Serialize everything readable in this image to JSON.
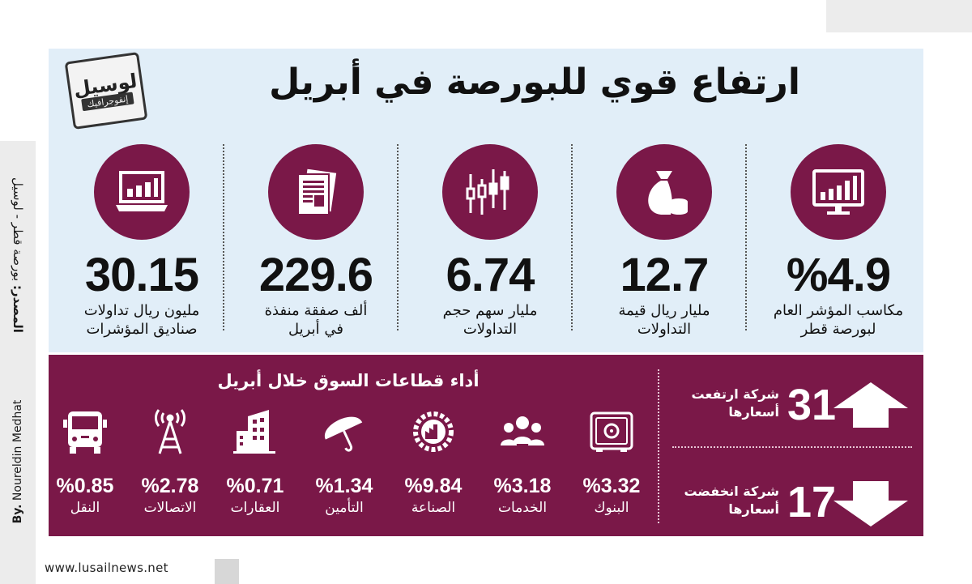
{
  "title": "ارتفاع قوي للبورصة في أبريل",
  "logo": {
    "line1": "لوسيل",
    "line2": "إنفوجرافيك"
  },
  "source": {
    "label": "المصدر:",
    "value": "بورصة قطر - لوسيل"
  },
  "author": {
    "prefix": "By.",
    "name": "Noureldin Medhat"
  },
  "website": "www.lusailnews.net",
  "stats": [
    {
      "icon": "monitor-chart-icon",
      "value": "%4.9",
      "label": "مكاسب المؤشر العام\nلبورصة قطر"
    },
    {
      "icon": "money-bag-icon",
      "value": "12.7",
      "label": "مليار ريال قيمة\nالتداولات"
    },
    {
      "icon": "candlestick-icon",
      "value": "6.74",
      "label": "مليار سهم حجم\nالتداولات"
    },
    {
      "icon": "newspaper-icon",
      "value": "229.6",
      "label": "ألف صفقة منفذة\nفي أبريل"
    },
    {
      "icon": "laptop-chart-icon",
      "value": "30.15",
      "label": "مليون ريال تداولات\nصناديق المؤشرات"
    }
  ],
  "sectors_title": "أداء قطاعات السوق خلال أبريل",
  "sectors": [
    {
      "icon": "safe-icon",
      "value": "%3.32",
      "label": "البنوك"
    },
    {
      "icon": "people-icon",
      "value": "%3.18",
      "label": "الخدمات"
    },
    {
      "icon": "factory-gear-icon",
      "value": "%9.84",
      "label": "الصناعة"
    },
    {
      "icon": "umbrella-icon",
      "value": "%1.34",
      "label": "التأمين"
    },
    {
      "icon": "building-icon",
      "value": "%0.71",
      "label": "العقارات"
    },
    {
      "icon": "antenna-icon",
      "value": "%2.78",
      "label": "الاتصالات"
    },
    {
      "icon": "truck-icon",
      "value": "%0.85",
      "label": "النقل"
    }
  ],
  "rising": {
    "value": "31",
    "label": "شركة ارتفعت\nأسعارها",
    "icon": "up-arrow-icon"
  },
  "falling": {
    "value": "17",
    "label": "شركة انخفضت\nأسعارها",
    "icon": "down-arrow-icon"
  },
  "colors": {
    "maroon": "#7a1848",
    "panel": "#e1eef8",
    "white": "#ffffff"
  }
}
